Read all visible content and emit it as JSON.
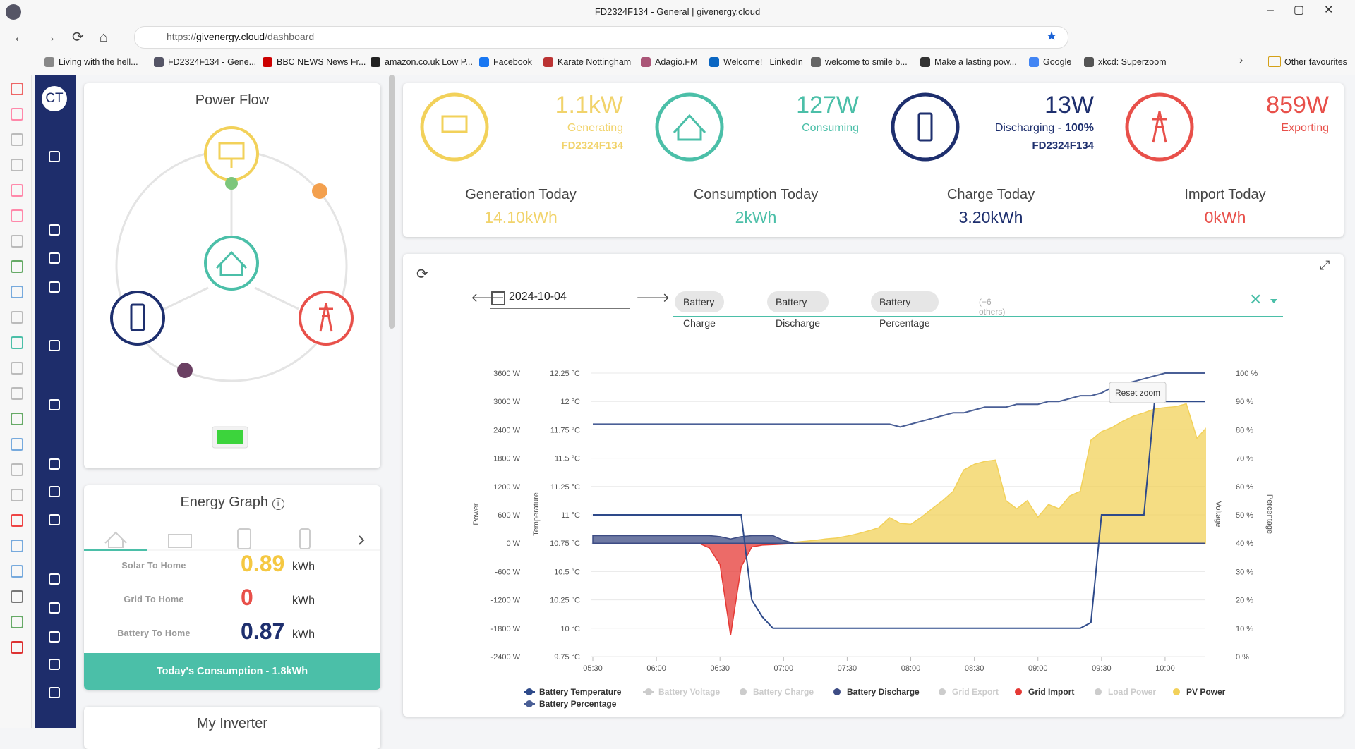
{
  "browser": {
    "title": "FD2324F134 - General | givenergy.cloud",
    "url_scheme": "https://",
    "url_host": "givenergy.cloud",
    "url_path": "/dashboard",
    "bookmarks": [
      "Living with the hell...",
      "FD2324F134 - Gene...",
      "BBC NEWS News Fr...",
      "amazon.co.uk Low P...",
      "Facebook",
      "Karate Nottingham",
      "Adagio.FM",
      "Welcome! | LinkedIn",
      "welcome to smile b...",
      "Make a lasting pow...",
      "Google",
      "xkcd: Superzoom"
    ],
    "other_favourites": "Other favourites"
  },
  "sidebar": {
    "avatar": "CT"
  },
  "power_flow": {
    "title": "Power Flow"
  },
  "energy_graph": {
    "title": "Energy Graph",
    "rows": [
      {
        "label": "Solar To Home",
        "value": 0.89,
        "unit": "kWh"
      },
      {
        "label": "Grid To Home",
        "value": 0,
        "unit": "kWh"
      },
      {
        "label": "Battery To Home",
        "value": 0.87,
        "unit": "kWh"
      }
    ],
    "footer": "Today's Consumption - 1.8kWh"
  },
  "my_inverter": {
    "title": "My Inverter"
  },
  "stats": {
    "live": [
      {
        "value": "1.1kW",
        "label": "Generating",
        "sub": "FD2324F134"
      },
      {
        "value": "127W",
        "label": "Consuming"
      },
      {
        "value": "13W",
        "label": "Discharging -",
        "label_strong": "100%",
        "sub": "FD2324F134"
      },
      {
        "value": "859W",
        "label": "Exporting"
      }
    ],
    "today": [
      {
        "label": "Generation Today",
        "value": "14.10kWh"
      },
      {
        "label": "Consumption Today",
        "value": "2kWh"
      },
      {
        "label": "Charge Today",
        "value": "3.20kWh"
      },
      {
        "label": "Import Today",
        "value": "0kWh"
      }
    ]
  },
  "chart_panel": {
    "date": "2024-10-04",
    "chips": [
      "Battery Charge",
      "Battery Discharge",
      "Battery Percentage"
    ],
    "more": "(+6 others)",
    "reset_zoom": "Reset zoom",
    "chart": {
      "type": "combo",
      "axis_labels": {
        "power": "Power",
        "temperature": "Temperature",
        "voltage": "Voltage",
        "percentage": "Percentage"
      },
      "x": [
        "05:30",
        "05:35",
        "05:40",
        "05:45",
        "05:50",
        "05:55",
        "06:00",
        "06:05",
        "06:10",
        "06:15",
        "06:20",
        "06:25",
        "06:30",
        "06:35",
        "06:40",
        "06:45",
        "06:50",
        "06:55",
        "07:00",
        "07:05",
        "07:10",
        "07:15",
        "07:20",
        "07:25",
        "07:30",
        "07:35",
        "07:40",
        "07:45",
        "07:50",
        "07:55",
        "08:00",
        "08:05",
        "08:10",
        "08:15",
        "08:20",
        "08:25",
        "08:30",
        "08:35",
        "08:40",
        "08:45",
        "08:50",
        "08:55",
        "09:00",
        "09:05",
        "09:10",
        "09:15",
        "09:20",
        "09:25",
        "09:30",
        "09:35",
        "09:40",
        "09:45",
        "09:50",
        "09:55",
        "10:00",
        "10:05",
        "10:10",
        "10:15",
        "10:19"
      ],
      "xlim": [
        "05:29",
        "10:19"
      ],
      "xticks": [
        "05:30",
        "06:00",
        "06:30",
        "07:00",
        "07:30",
        "08:00",
        "08:30",
        "09:00",
        "09:30",
        "10:00"
      ],
      "ylim": [
        -2400,
        3600
      ],
      "yticks": [
        {
          "value": -2400,
          "label": "-2400 W"
        },
        {
          "value": -1800,
          "label": "-1800 W"
        },
        {
          "value": -1200,
          "label": "-1200 W"
        },
        {
          "value": -600,
          "label": "-600 W"
        },
        {
          "value": 0,
          "label": "0 W"
        },
        {
          "value": 600,
          "label": "600 W"
        },
        {
          "value": 1200,
          "label": "1200 W"
        },
        {
          "value": 1800,
          "label": "1800 W"
        },
        {
          "value": 2400,
          "label": "2400 W"
        },
        {
          "value": 3000,
          "label": "3000 W"
        },
        {
          "value": 3600,
          "label": "3600 W"
        }
      ],
      "y2lim": [
        9.75,
        12.25
      ],
      "y2ticks": [
        {
          "value": 9.75,
          "label": "9.75 °C"
        },
        {
          "value": 10,
          "label": "10 °C"
        },
        {
          "value": 10.25,
          "label": "10.25 °C"
        },
        {
          "value": 10.5,
          "label": "10.5 °C"
        },
        {
          "value": 10.75,
          "label": "10.75 °C"
        },
        {
          "value": 11,
          "label": "11 °C"
        },
        {
          "value": 11.25,
          "label": "11.25 °C"
        },
        {
          "value": 11.5,
          "label": "11.5 °C"
        },
        {
          "value": 11.75,
          "label": "11.75 °C"
        },
        {
          "value": 12,
          "label": "12 °C"
        },
        {
          "value": 12.25,
          "label": "12.25 °C"
        }
      ],
      "y3lim": [
        0,
        100
      ],
      "y3ticks": [
        {
          "value": 0,
          "label": "0 %"
        },
        {
          "value": 10,
          "label": "10 %"
        },
        {
          "value": 20,
          "label": "20 %"
        },
        {
          "value": 30,
          "label": "30 %"
        },
        {
          "value": 40,
          "label": "40 %"
        },
        {
          "value": 50,
          "label": "50 %"
        },
        {
          "value": 60,
          "label": "60 %"
        },
        {
          "value": 70,
          "label": "70 %"
        },
        {
          "value": 80,
          "label": "80 %"
        },
        {
          "value": 90,
          "label": "90 %"
        },
        {
          "value": 100,
          "label": "100 %"
        }
      ],
      "grid": true,
      "series": [
        {
          "name": "Battery Temperature",
          "type": "line",
          "axis": "y2",
          "color": "#2e4a8a",
          "values": [
            11,
            11,
            11,
            11,
            11,
            11,
            11,
            11,
            11,
            11,
            11,
            11,
            11,
            11,
            11,
            10.25,
            10.1,
            10,
            10,
            10,
            10,
            10,
            10,
            10,
            10,
            10,
            10,
            10,
            10,
            10,
            10,
            10,
            10,
            10,
            10,
            10,
            10,
            10,
            10,
            10,
            10,
            10,
            10,
            10,
            10,
            10,
            10,
            10.05,
            11,
            11,
            11,
            11,
            11,
            12,
            12,
            12,
            12,
            12,
            12
          ]
        },
        {
          "name": "Battery Voltage",
          "type": "line",
          "hidden": true
        },
        {
          "name": "Battery Charge",
          "type": "area",
          "hidden": true
        },
        {
          "name": "Battery Discharge",
          "type": "area",
          "color": "#3d4c84",
          "values": [
            160,
            160,
            160,
            160,
            160,
            160,
            160,
            160,
            160,
            160,
            160,
            160,
            140,
            90,
            140,
            160,
            160,
            160,
            60,
            0,
            0,
            0,
            0,
            0,
            0,
            0,
            0,
            0,
            0,
            0,
            0,
            0,
            0,
            0,
            0,
            0,
            0,
            0,
            0,
            0,
            0,
            0,
            0,
            0,
            0,
            0,
            0,
            0,
            0,
            0,
            0,
            0,
            0,
            0,
            0,
            0,
            0,
            0,
            0
          ]
        },
        {
          "name": "Grid Export",
          "type": "area",
          "hidden": true
        },
        {
          "name": "Grid Import",
          "type": "area",
          "color": "#e53935",
          "values": [
            0,
            0,
            0,
            0,
            0,
            0,
            0,
            0,
            0,
            0,
            0,
            -100,
            -450,
            -1950,
            -500,
            -80,
            -40,
            -30,
            -20,
            -10,
            0,
            0,
            0,
            0,
            0,
            0,
            0,
            0,
            0,
            0,
            0,
            0,
            0,
            0,
            0,
            0,
            0,
            0,
            0,
            0,
            0,
            0,
            0,
            0,
            0,
            0,
            0,
            0,
            0,
            0,
            0,
            0,
            0,
            0,
            0,
            0,
            0,
            0,
            0
          ]
        },
        {
          "name": "Load Power",
          "type": "area",
          "hidden": true
        },
        {
          "name": "PV Power",
          "type": "area",
          "color": "#f2d15a",
          "values": [
            0,
            0,
            0,
            0,
            0,
            0,
            0,
            0,
            0,
            0,
            0,
            0,
            0,
            0,
            0,
            0,
            0,
            0,
            0,
            20,
            40,
            60,
            90,
            110,
            150,
            200,
            260,
            330,
            540,
            420,
            400,
            550,
            730,
            900,
            1100,
            1550,
            1670,
            1730,
            1760,
            900,
            730,
            900,
            550,
            820,
            730,
            1000,
            1100,
            2180,
            2360,
            2450,
            2580,
            2690,
            2760,
            2840,
            2870,
            2890,
            2950,
            2220,
            2420
          ]
        },
        {
          "name": "Battery Percentage",
          "type": "line",
          "axis": "y3",
          "color": "#4a5f96",
          "values": [
            82,
            82,
            82,
            82,
            82,
            82,
            82,
            82,
            82,
            82,
            82,
            82,
            82,
            82,
            82,
            82,
            82,
            82,
            82,
            82,
            82,
            82,
            82,
            82,
            82,
            82,
            82,
            82,
            82,
            81,
            82,
            83,
            84,
            85,
            86,
            86,
            87,
            88,
            88,
            88,
            89,
            89,
            89,
            90,
            90,
            91,
            92,
            92,
            93,
            95,
            96,
            97,
            98,
            99,
            100,
            100,
            100,
            100,
            100
          ]
        }
      ]
    }
  }
}
